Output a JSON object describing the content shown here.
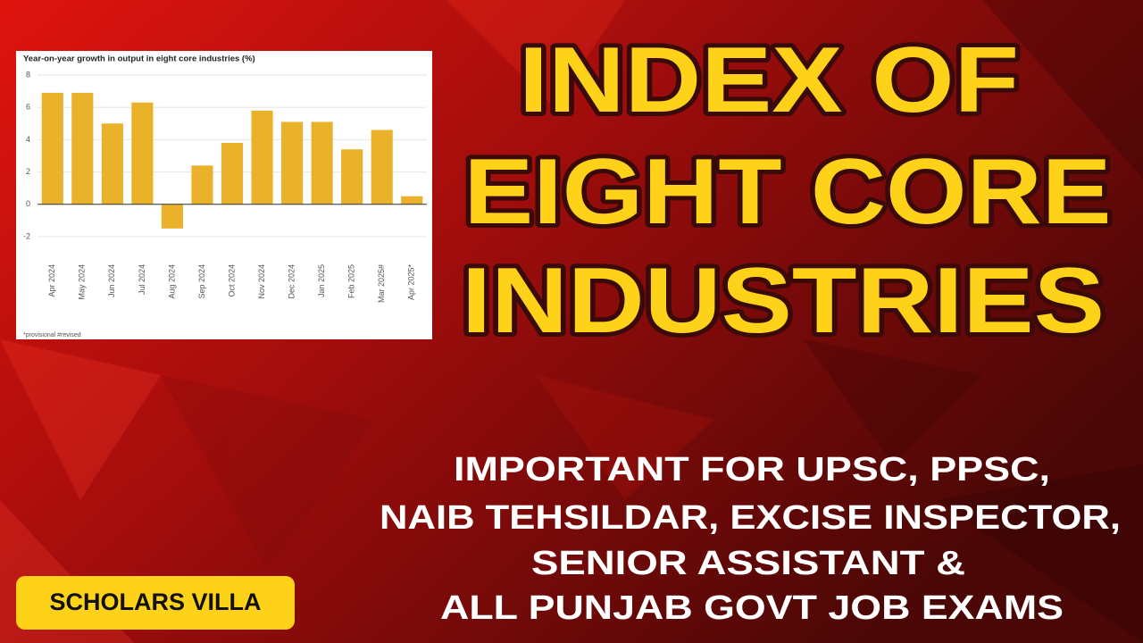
{
  "headline": [
    "INDEX OF",
    "EIGHT CORE",
    "INDUSTRIES"
  ],
  "subtitle": [
    "IMPORTANT FOR UPSC, PPSC,",
    "NAIB TEHSILDAR, EXCISE INSPECTOR,",
    "SENIOR ASSISTANT &",
    "ALL PUNJAB GOVT JOB EXAMS"
  ],
  "brand": "SCHOLARS VILLA",
  "chart_data": {
    "type": "bar",
    "title": "Year-on-year growth in output in eight core industries (%)",
    "note": "*provisional #revised",
    "categories": [
      "Apr 2024",
      "May 2024",
      "Jun 2024",
      "Jul 2024",
      "Aug 2024",
      "Sep 2024",
      "Oct 2024",
      "Nov 2024",
      "Dec 2024",
      "Jan 2025",
      "Feb 2025",
      "Mar 2025#",
      "Apr 2025*"
    ],
    "values": [
      6.9,
      6.9,
      5.0,
      6.3,
      -1.5,
      2.4,
      3.8,
      5.8,
      5.1,
      5.1,
      3.4,
      4.6,
      0.5
    ],
    "color": "#e9b22a",
    "ylim": [
      -3,
      8.5
    ],
    "yticks": [
      -2,
      0,
      2,
      4,
      6,
      8
    ],
    "grid": true
  }
}
